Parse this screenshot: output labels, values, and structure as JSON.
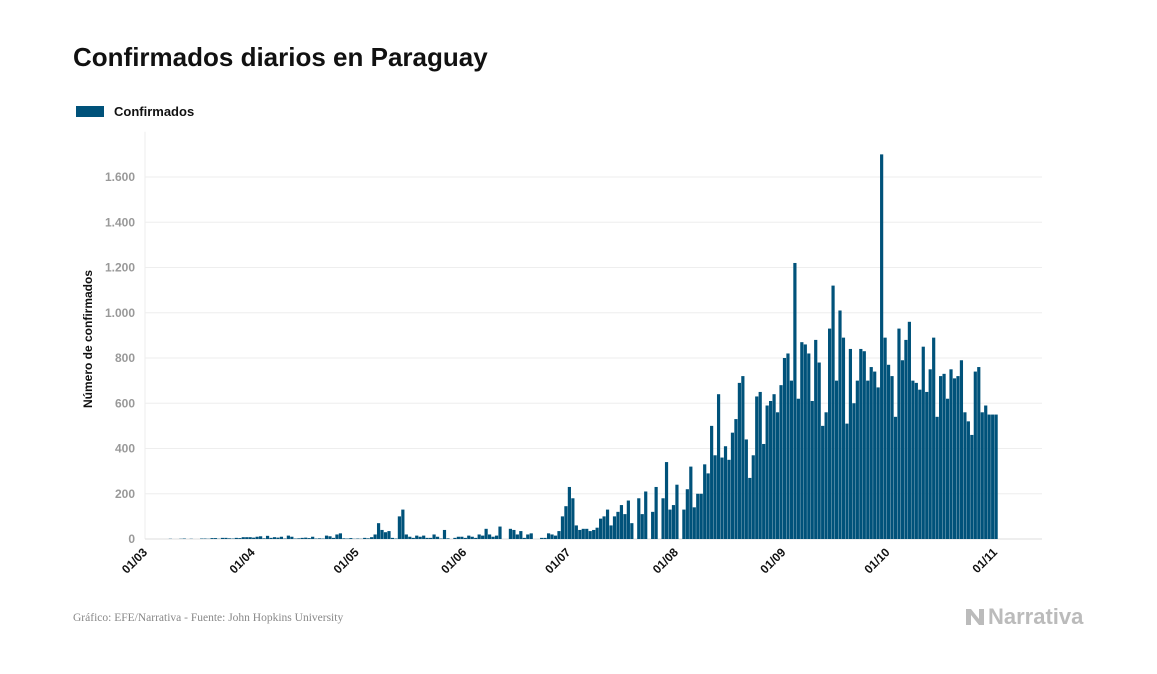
{
  "chart_data": {
    "type": "bar",
    "title": "Confirmados diarios en Paraguay",
    "ylabel": "Número de confirmados",
    "xlabel": "",
    "ylim": [
      0,
      1800
    ],
    "yticks": [
      0,
      200,
      400,
      600,
      800,
      1000,
      1200,
      1400,
      1600
    ],
    "ytick_labels": [
      "0",
      "200",
      "400",
      "600",
      "800",
      "1.000",
      "1.200",
      "1.400",
      "1.600"
    ],
    "xtick_labels": [
      "01/03",
      "01/04",
      "01/05",
      "01/06",
      "01/07",
      "01/08",
      "01/09",
      "01/10",
      "01/11"
    ],
    "grid": true,
    "legend_placement": "top-left",
    "color": "#00527a",
    "series": [
      {
        "name": "Confirmados",
        "values_by_month": [
          {
            "month": "03",
            "values": [
              0,
              0,
              0,
              0,
              0,
              0,
              1,
              0,
              0,
              1,
              2,
              0,
              1,
              0,
              0,
              2,
              2,
              1,
              4,
              4,
              1,
              5,
              5,
              3,
              2,
              5,
              4,
              8,
              8,
              8,
              6
            ]
          },
          {
            "month": "04",
            "values": [
              10,
              12,
              3,
              14,
              5,
              8,
              6,
              10,
              2,
              15,
              10,
              2,
              3,
              5,
              6,
              4,
              10,
              2,
              3,
              2,
              15,
              12,
              5,
              20,
              25,
              3,
              2,
              4,
              1,
              2
            ]
          },
          {
            "month": "05",
            "values": [
              1,
              5,
              3,
              8,
              20,
              70,
              40,
              30,
              35,
              5,
              2,
              100,
              130,
              20,
              10,
              5,
              15,
              10,
              15,
              5,
              5,
              20,
              10,
              2,
              40,
              3,
              0,
              5,
              10,
              10,
              5
            ]
          },
          {
            "month": "06",
            "values": [
              15,
              10,
              5,
              20,
              15,
              45,
              20,
              10,
              15,
              55,
              0,
              0,
              45,
              40,
              20,
              35,
              5,
              20,
              25,
              0,
              0,
              5,
              5,
              25,
              20,
              15,
              35,
              100,
              145,
              230
            ]
          },
          {
            "month": "07",
            "values": [
              180,
              60,
              40,
              45,
              45,
              35,
              40,
              50,
              90,
              100,
              130,
              60,
              100,
              120,
              150,
              110,
              170,
              70,
              0,
              180,
              110,
              210,
              0,
              120,
              230,
              0,
              180,
              340,
              130,
              150,
              240
            ]
          },
          {
            "month": "08",
            "values": [
              0,
              130,
              220,
              320,
              140,
              200,
              200,
              330,
              290,
              500,
              370,
              640,
              360,
              410,
              350,
              470,
              530,
              690,
              720,
              440,
              270,
              370,
              630,
              650,
              420,
              590,
              610,
              640,
              560,
              680,
              800
            ]
          },
          {
            "month": "09",
            "values": [
              820,
              700,
              1220,
              620,
              870,
              860,
              820,
              610,
              880,
              780,
              500,
              560,
              930,
              1120,
              700,
              1010,
              890,
              510,
              840,
              600,
              700,
              840,
              830,
              700,
              760,
              740,
              670,
              1700,
              890,
              770
            ]
          },
          {
            "month": "10",
            "values": [
              720,
              540,
              930,
              790,
              880,
              960,
              700,
              690,
              660,
              850,
              650,
              750,
              890,
              540,
              720,
              730,
              620,
              750,
              710,
              720,
              790,
              560,
              520,
              460,
              740,
              760,
              560,
              590,
              550,
              550,
              550
            ]
          }
        ]
      }
    ]
  },
  "footer": "Gráfico: EFE/Narrativa - Fuente: John Hopkins University",
  "logo": "Narrativa"
}
